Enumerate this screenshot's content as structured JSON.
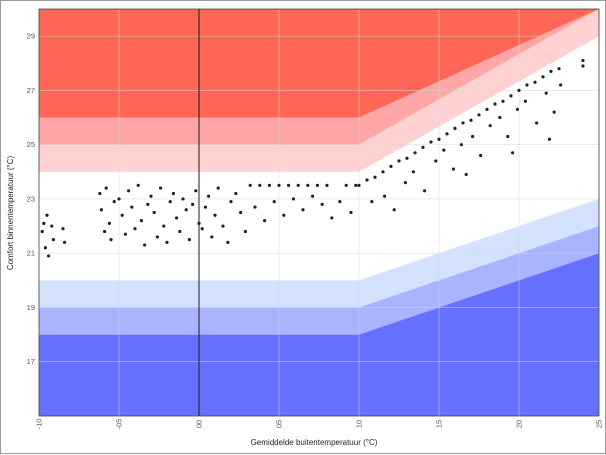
{
  "chart_data": {
    "type": "scatter",
    "title": "",
    "xlabel": "Gemiddelde buitentemperatuur (°C)",
    "ylabel": "Comfort binnentemperatuur (°C)",
    "xlim": [
      -10,
      25
    ],
    "ylim": [
      15,
      30
    ],
    "x_ticks": [
      -10,
      -5,
      0,
      5,
      10,
      15,
      20,
      25
    ],
    "x_tick_labels": [
      "-10",
      "-05",
      "00",
      "05",
      "10",
      "15",
      "20",
      "25"
    ],
    "y_ticks": [
      17,
      19,
      21,
      23,
      25,
      27,
      29
    ],
    "y_tick_labels": [
      "17",
      "19",
      "21",
      "23",
      "25",
      "27",
      "29"
    ],
    "grid": true,
    "vertical_reference_line_x": 0,
    "comfort_bands": [
      {
        "name": "warm-3",
        "color": "#ff6655",
        "lower": [
          [
            -10,
            26
          ],
          [
            10,
            26
          ],
          [
            25,
            31
          ]
        ],
        "upper": [
          [
            -10,
            30
          ],
          [
            25,
            30
          ]
        ]
      },
      {
        "name": "warm-2",
        "color": "#ffa7a7",
        "lower": [
          [
            -10,
            25
          ],
          [
            10,
            25
          ],
          [
            25,
            30
          ]
        ],
        "upper": [
          [
            -10,
            26
          ],
          [
            10,
            26
          ],
          [
            25,
            31
          ]
        ]
      },
      {
        "name": "warm-1",
        "color": "#ffd1d1",
        "lower": [
          [
            -10,
            24
          ],
          [
            10,
            24
          ],
          [
            25,
            29
          ]
        ],
        "upper": [
          [
            -10,
            25
          ],
          [
            10,
            25
          ],
          [
            25,
            30
          ]
        ]
      },
      {
        "name": "cool-1",
        "color": "#d4e2ff",
        "lower": [
          [
            -10,
            19
          ],
          [
            10,
            19
          ],
          [
            25,
            22
          ]
        ],
        "upper": [
          [
            -10,
            20
          ],
          [
            10,
            20
          ],
          [
            25,
            23
          ]
        ]
      },
      {
        "name": "cool-2",
        "color": "#aab3ff",
        "lower": [
          [
            -10,
            18
          ],
          [
            10,
            18
          ],
          [
            25,
            21
          ]
        ],
        "upper": [
          [
            -10,
            19
          ],
          [
            10,
            19
          ],
          [
            25,
            22
          ]
        ]
      },
      {
        "name": "cool-3",
        "color": "#6670ff",
        "lower": [
          [
            -10,
            15
          ],
          [
            25,
            15
          ]
        ],
        "upper": [
          [
            -10,
            18
          ],
          [
            10,
            18
          ],
          [
            25,
            21
          ]
        ]
      }
    ],
    "point_color": "#222222",
    "points": [
      [
        -9.8,
        21.8
      ],
      [
        -9.7,
        22.1
      ],
      [
        -9.6,
        21.2
      ],
      [
        -9.5,
        22.4
      ],
      [
        -9.4,
        20.9
      ],
      [
        -9.2,
        22.0
      ],
      [
        -9.1,
        21.5
      ],
      [
        -8.5,
        21.9
      ],
      [
        -8.4,
        21.4
      ],
      [
        -6.2,
        23.2
      ],
      [
        -6.1,
        22.6
      ],
      [
        -5.9,
        21.8
      ],
      [
        -5.8,
        23.4
      ],
      [
        -5.6,
        22.1
      ],
      [
        -5.5,
        21.5
      ],
      [
        -5.3,
        22.9
      ],
      [
        -5.0,
        23.0
      ],
      [
        -4.8,
        22.4
      ],
      [
        -4.6,
        21.7
      ],
      [
        -4.4,
        23.3
      ],
      [
        -4.2,
        22.7
      ],
      [
        -4.0,
        21.9
      ],
      [
        -3.8,
        23.5
      ],
      [
        -3.6,
        22.2
      ],
      [
        -3.4,
        21.3
      ],
      [
        -3.2,
        22.8
      ],
      [
        -3.0,
        23.1
      ],
      [
        -2.8,
        22.5
      ],
      [
        -2.6,
        21.6
      ],
      [
        -2.4,
        23.4
      ],
      [
        -2.2,
        22.0
      ],
      [
        -2.0,
        21.4
      ],
      [
        -1.8,
        22.9
      ],
      [
        -1.6,
        23.2
      ],
      [
        -1.4,
        22.3
      ],
      [
        -1.2,
        21.8
      ],
      [
        -1.0,
        23.0
      ],
      [
        -0.8,
        22.6
      ],
      [
        -0.6,
        21.5
      ],
      [
        -0.4,
        22.8
      ],
      [
        -0.2,
        23.3
      ],
      [
        0.0,
        22.1
      ],
      [
        0.2,
        21.9
      ],
      [
        0.4,
        22.7
      ],
      [
        0.6,
        23.1
      ],
      [
        0.8,
        21.6
      ],
      [
        1.0,
        22.4
      ],
      [
        1.2,
        23.4
      ],
      [
        1.5,
        22.0
      ],
      [
        1.8,
        21.4
      ],
      [
        2.0,
        22.9
      ],
      [
        2.3,
        23.2
      ],
      [
        2.6,
        22.5
      ],
      [
        2.9,
        21.8
      ],
      [
        3.2,
        23.5
      ],
      [
        3.5,
        22.7
      ],
      [
        3.8,
        23.5
      ],
      [
        4.1,
        22.2
      ],
      [
        4.4,
        23.5
      ],
      [
        4.7,
        22.9
      ],
      [
        5.0,
        23.5
      ],
      [
        5.3,
        22.4
      ],
      [
        5.6,
        23.5
      ],
      [
        5.9,
        23.0
      ],
      [
        6.2,
        23.5
      ],
      [
        6.5,
        22.6
      ],
      [
        6.8,
        23.5
      ],
      [
        7.1,
        23.1
      ],
      [
        7.4,
        23.5
      ],
      [
        7.7,
        22.8
      ],
      [
        8.0,
        23.5
      ],
      [
        8.3,
        22.3
      ],
      [
        8.8,
        22.9
      ],
      [
        9.2,
        23.5
      ],
      [
        9.5,
        22.5
      ],
      [
        9.8,
        23.5
      ],
      [
        10.0,
        23.5
      ],
      [
        10.5,
        23.7
      ],
      [
        11.0,
        23.8
      ],
      [
        11.5,
        24.0
      ],
      [
        12.0,
        24.2
      ],
      [
        12.5,
        24.4
      ],
      [
        13.0,
        24.5
      ],
      [
        13.5,
        24.7
      ],
      [
        14.0,
        24.9
      ],
      [
        14.5,
        25.1
      ],
      [
        15.0,
        25.2
      ],
      [
        15.5,
        25.4
      ],
      [
        16.0,
        25.6
      ],
      [
        16.5,
        25.8
      ],
      [
        17.0,
        25.9
      ],
      [
        17.5,
        26.1
      ],
      [
        18.0,
        26.3
      ],
      [
        18.5,
        26.5
      ],
      [
        19.0,
        26.6
      ],
      [
        19.5,
        26.8
      ],
      [
        20.0,
        27.0
      ],
      [
        20.5,
        27.2
      ],
      [
        21.0,
        27.3
      ],
      [
        21.5,
        27.5
      ],
      [
        22.0,
        27.7
      ],
      [
        22.5,
        27.8
      ],
      [
        10.8,
        22.9
      ],
      [
        11.6,
        23.1
      ],
      [
        12.2,
        22.6
      ],
      [
        12.9,
        23.6
      ],
      [
        13.4,
        24.0
      ],
      [
        14.1,
        23.3
      ],
      [
        14.8,
        24.4
      ],
      [
        15.3,
        24.8
      ],
      [
        15.9,
        24.1
      ],
      [
        16.4,
        25.0
      ],
      [
        17.1,
        25.3
      ],
      [
        17.6,
        24.6
      ],
      [
        18.2,
        25.7
      ],
      [
        18.8,
        26.0
      ],
      [
        19.3,
        25.3
      ],
      [
        19.9,
        26.3
      ],
      [
        20.4,
        26.6
      ],
      [
        21.1,
        25.8
      ],
      [
        21.7,
        26.9
      ],
      [
        22.2,
        26.2
      ],
      [
        22.6,
        27.2
      ],
      [
        16.7,
        23.9
      ],
      [
        19.6,
        24.7
      ],
      [
        21.9,
        25.2
      ],
      [
        24.0,
        27.9
      ],
      [
        24.0,
        28.1
      ]
    ]
  }
}
